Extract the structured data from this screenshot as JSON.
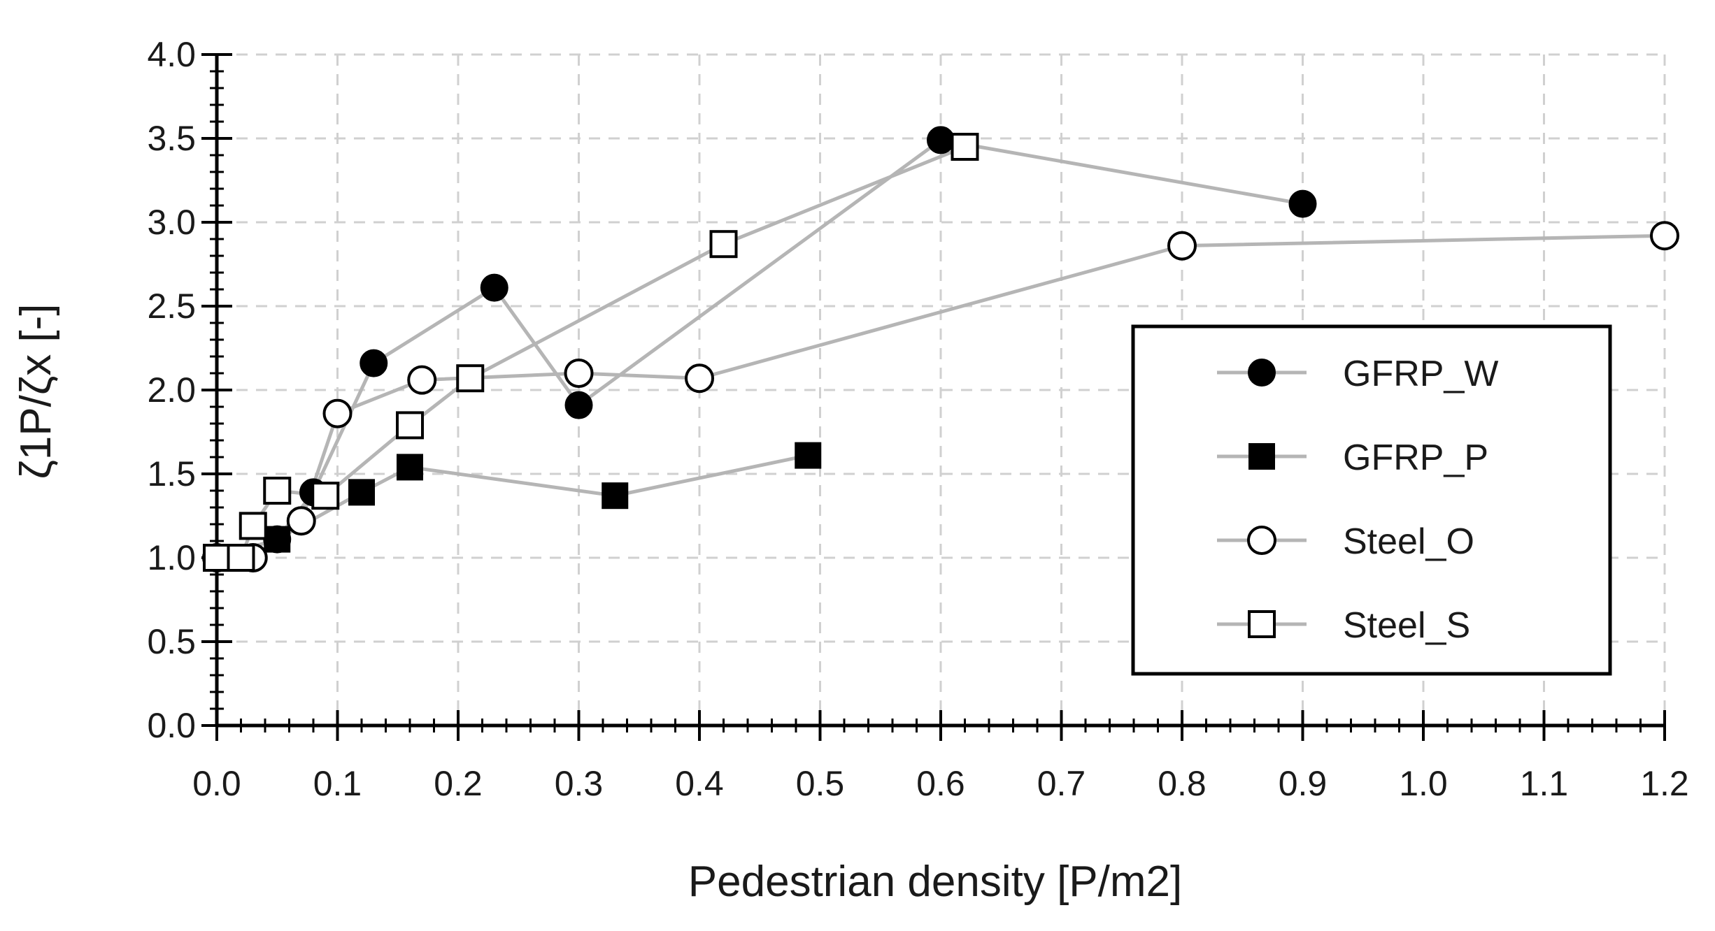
{
  "chart_data": {
    "type": "scatter",
    "xlabel": "Pedestrian density [P/m2]",
    "ylabel": "ζ1P/ζx [-]",
    "xlim": [
      0,
      1.2
    ],
    "ylim": [
      0,
      4.0
    ],
    "x_ticks": [
      "0.0",
      "0.1",
      "0.2",
      "0.3",
      "0.4",
      "0.5",
      "0.6",
      "0.7",
      "0.8",
      "0.9",
      "1.0",
      "1.1",
      "1.2"
    ],
    "y_ticks": [
      "0.0",
      "0.5",
      "1.0",
      "1.5",
      "2.0",
      "2.5",
      "3.0",
      "3.5",
      "4.0"
    ],
    "grid": true,
    "legend_position": "right",
    "line_color": "#b5b5b5",
    "series": [
      {
        "name": "GFRP_W",
        "marker": "circle-filled",
        "points": [
          [
            0.0,
            1.0
          ],
          [
            0.05,
            1.11
          ],
          [
            0.08,
            1.39
          ],
          [
            0.13,
            2.16
          ],
          [
            0.23,
            2.61
          ],
          [
            0.3,
            1.91
          ],
          [
            0.6,
            3.49
          ],
          [
            0.9,
            3.11
          ]
        ]
      },
      {
        "name": "GFRP_P",
        "marker": "square-filled",
        "points": [
          [
            0.0,
            1.0
          ],
          [
            0.05,
            1.11
          ],
          [
            0.12,
            1.39
          ],
          [
            0.16,
            1.54
          ],
          [
            0.33,
            1.37
          ],
          [
            0.49,
            1.61
          ]
        ]
      },
      {
        "name": "Steel_O",
        "marker": "circle-open",
        "points": [
          [
            0.0,
            1.0
          ],
          [
            0.03,
            1.0
          ],
          [
            0.07,
            1.22
          ],
          [
            0.1,
            1.86
          ],
          [
            0.17,
            2.06
          ],
          [
            0.3,
            2.1
          ],
          [
            0.4,
            2.07
          ],
          [
            0.8,
            2.86
          ],
          [
            1.2,
            2.92
          ]
        ]
      },
      {
        "name": "Steel_S",
        "marker": "square-open",
        "points": [
          [
            0.0,
            1.0
          ],
          [
            0.02,
            1.0
          ],
          [
            0.03,
            1.19
          ],
          [
            0.05,
            1.4
          ],
          [
            0.09,
            1.37
          ],
          [
            0.16,
            1.79
          ],
          [
            0.21,
            2.07
          ],
          [
            0.42,
            2.87
          ],
          [
            0.62,
            3.45
          ]
        ]
      }
    ]
  }
}
